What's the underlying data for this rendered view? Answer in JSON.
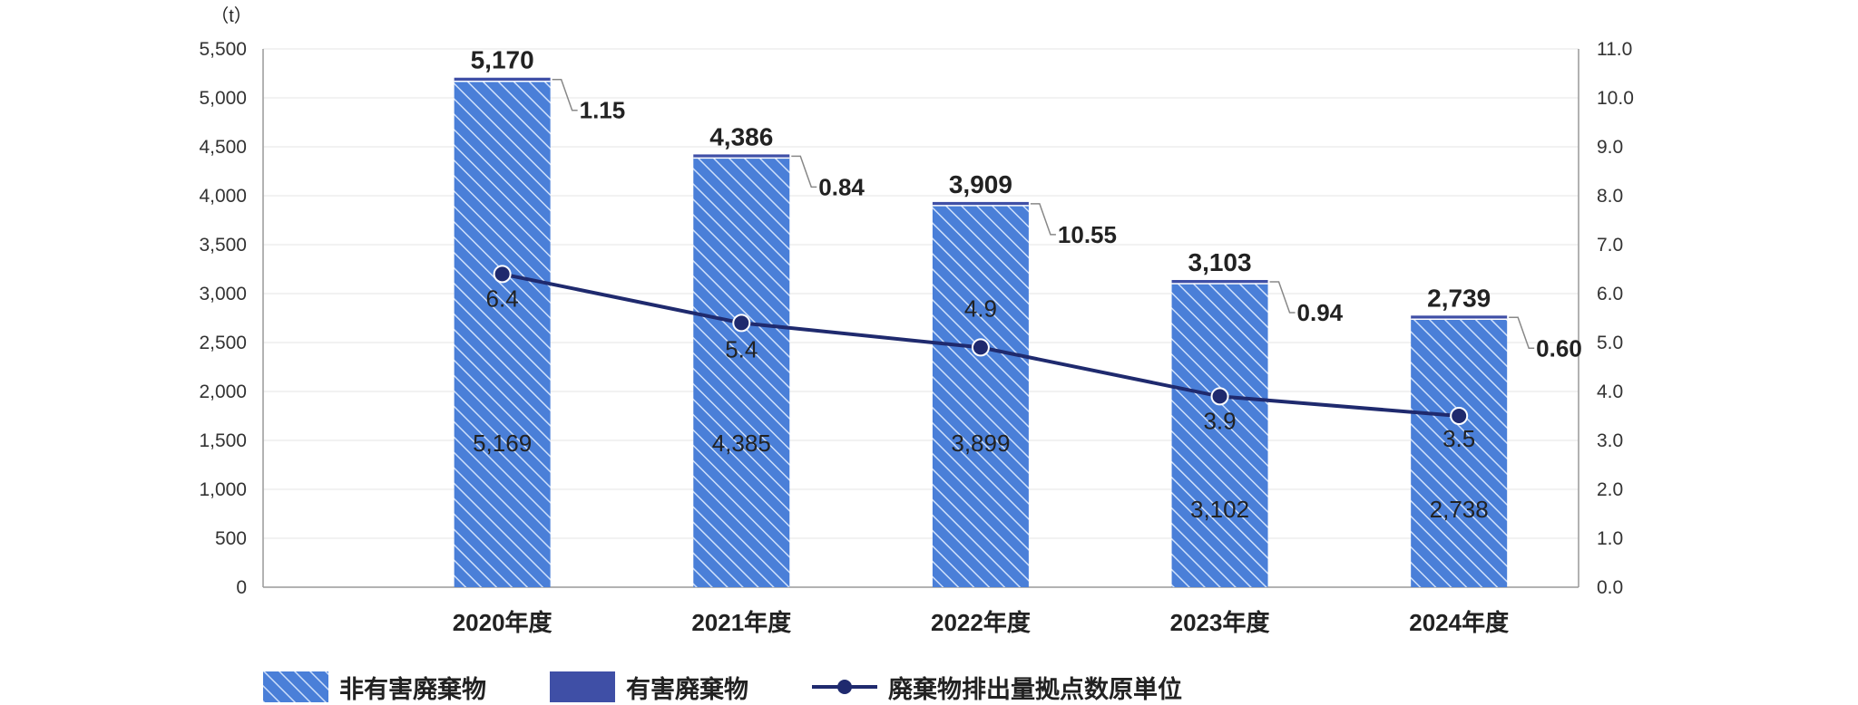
{
  "chart_data": {
    "type": "bar",
    "categories": [
      "2020年度",
      "2021年度",
      "2022年度",
      "2023年度",
      "2024年度"
    ],
    "series": [
      {
        "name": "非有害廃棄物",
        "kind": "bar",
        "axis": "left",
        "values": [
          5169,
          4385,
          3899,
          3102,
          2738
        ],
        "color": "#4a7fd8"
      },
      {
        "name": "有害廃棄物",
        "kind": "bar",
        "axis": "left",
        "values": [
          1.15,
          0.84,
          10.55,
          0.94,
          0.6
        ],
        "labels": [
          "1.15",
          "0.84",
          "10.55",
          "0.94",
          "0.60"
        ],
        "color": "#3f4fa6"
      },
      {
        "name": "廃棄物排出量拠点数原単位",
        "kind": "line",
        "axis": "right",
        "values": [
          6.4,
          5.4,
          4.9,
          3.9,
          3.5
        ],
        "color": "#1f2a6e"
      }
    ],
    "totals": [
      "5,170",
      "4,386",
      "3,909",
      "3,103",
      "2,739"
    ],
    "non_hazardous_labels": [
      "5,169",
      "4,385",
      "3,899",
      "3,102",
      "2,738"
    ],
    "line_labels": [
      "6.4",
      "5.4",
      "4.9",
      "3.9",
      "3.5"
    ],
    "left_axis": {
      "unit": "（t）",
      "ylim": [
        0,
        5500
      ],
      "ticks": [
        "0",
        "500",
        "1,000",
        "1,500",
        "2,000",
        "2,500",
        "3,000",
        "3,500",
        "4,000",
        "4,500",
        "5,000",
        "5,500"
      ]
    },
    "right_axis": {
      "ylim": [
        0,
        11
      ],
      "ticks": [
        "0.0",
        "1.0",
        "2.0",
        "3.0",
        "4.0",
        "5.0",
        "6.0",
        "7.0",
        "8.0",
        "9.0",
        "10.0",
        "11.0"
      ]
    },
    "grid": true,
    "legend_position": "bottom"
  },
  "legend": {
    "non_hazardous": "非有害廃棄物",
    "hazardous": "有害廃棄物",
    "intensity": "廃棄物排出量拠点数原単位"
  }
}
